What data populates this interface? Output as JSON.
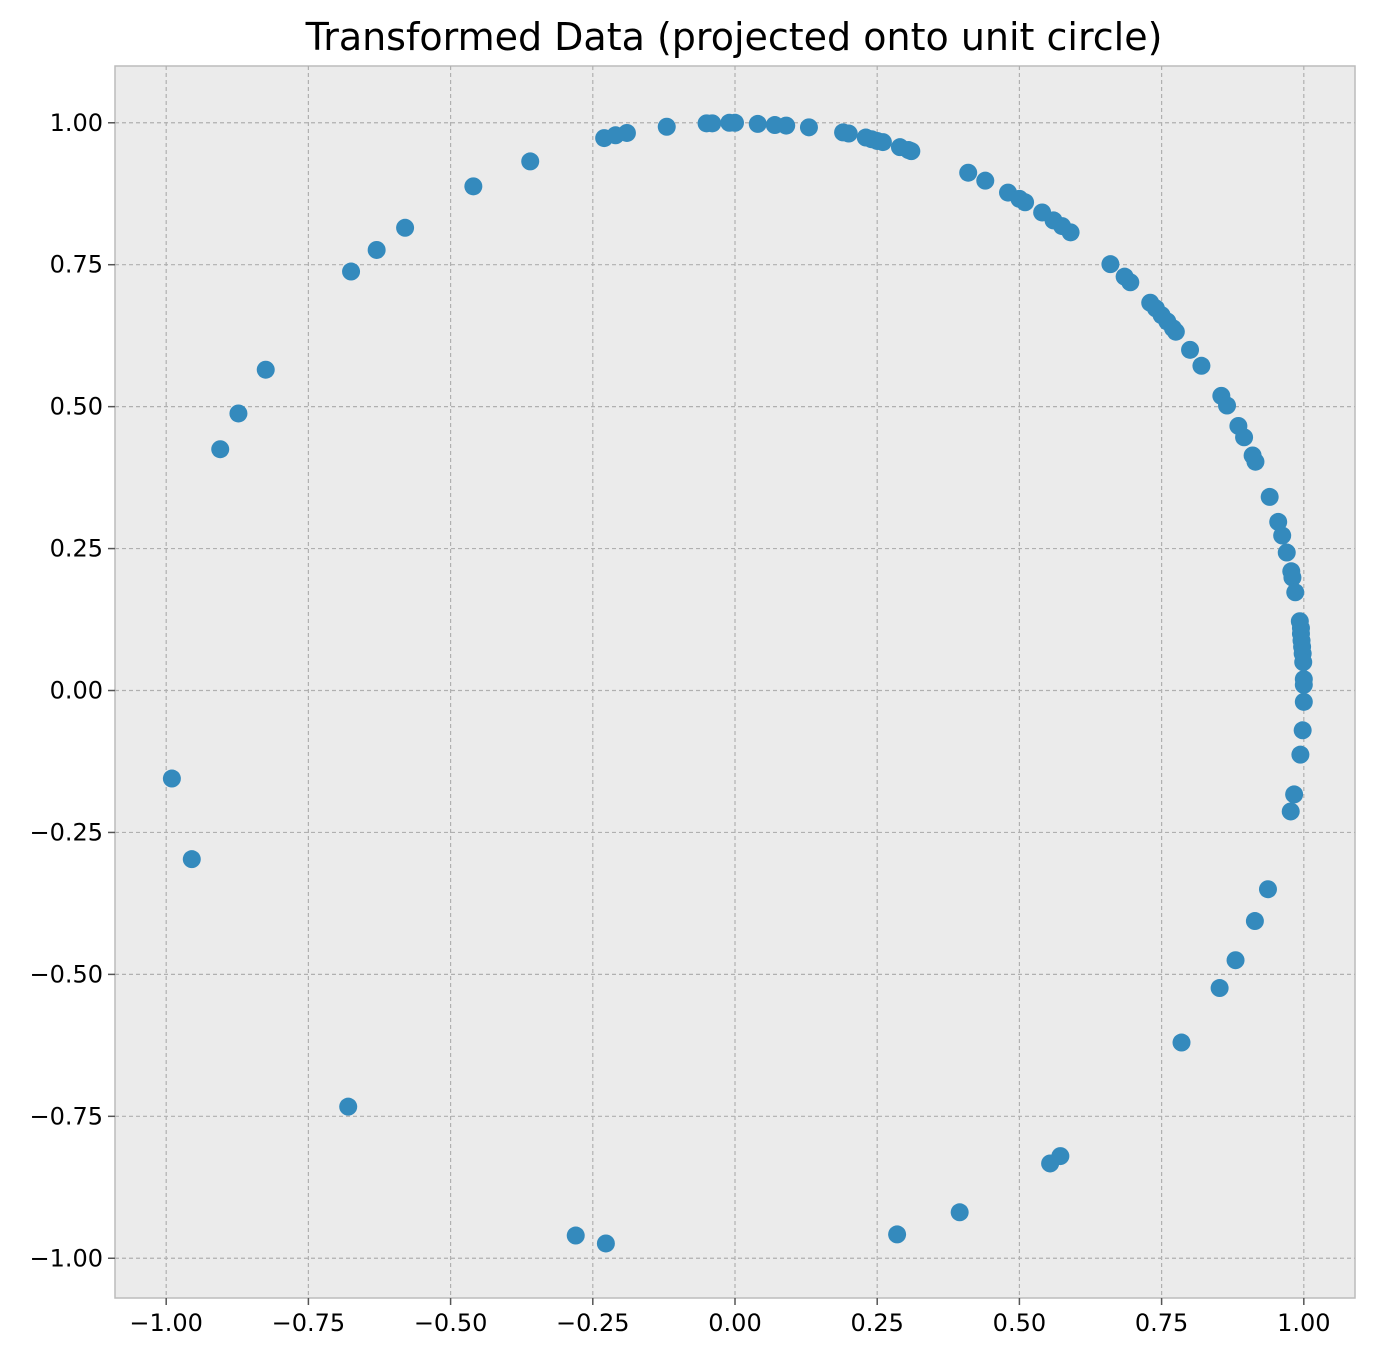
{
  "chart_data": {
    "type": "scatter",
    "title": "Transformed Data (projected onto unit circle)",
    "xlabel": "",
    "ylabel": "",
    "xlim": [
      -1.09,
      1.09
    ],
    "ylim": [
      -1.07,
      1.1
    ],
    "xticks": [
      -1.0,
      -0.75,
      -0.5,
      -0.25,
      0.0,
      0.25,
      0.5,
      0.75,
      1.0
    ],
    "xtick_labels": [
      "−1.00",
      "−0.75",
      "−0.50",
      "−0.25",
      "0.00",
      "0.25",
      "0.50",
      "0.75",
      "1.00"
    ],
    "yticks": [
      1.0,
      0.75,
      0.5,
      0.25,
      0.0,
      -0.25,
      -0.5,
      -0.75,
      -1.0
    ],
    "ytick_labels": [
      "1.00",
      "0.75",
      "0.50",
      "0.25",
      "0.00",
      "−0.25",
      "−0.50",
      "−0.75",
      "−1.00"
    ],
    "grid": true,
    "colors": {
      "marker": "#348ABD",
      "background": "#EBEBEB",
      "frame": "#BCBCBC",
      "grid": "#B0B0B0"
    },
    "series": [
      {
        "points": [
          [
            0.0,
            1.0
          ],
          [
            0.04,
            0.998
          ],
          [
            0.07,
            0.996
          ],
          [
            0.09,
            0.995
          ],
          [
            0.13,
            0.992
          ],
          [
            0.19,
            0.983
          ],
          [
            0.2,
            0.981
          ],
          [
            0.23,
            0.974
          ],
          [
            0.24,
            0.971
          ],
          [
            0.25,
            0.968
          ],
          [
            0.26,
            0.966
          ],
          [
            0.29,
            0.957
          ],
          [
            0.305,
            0.952
          ],
          [
            0.31,
            0.95
          ],
          [
            0.41,
            0.912
          ],
          [
            0.44,
            0.898
          ],
          [
            0.48,
            0.877
          ],
          [
            0.5,
            0.866
          ],
          [
            0.51,
            0.86
          ],
          [
            0.54,
            0.842
          ],
          [
            0.56,
            0.828
          ],
          [
            0.575,
            0.818
          ],
          [
            0.59,
            0.807
          ],
          [
            0.66,
            0.751
          ],
          [
            0.685,
            0.729
          ],
          [
            0.695,
            0.719
          ],
          [
            0.73,
            0.683
          ],
          [
            0.74,
            0.673
          ],
          [
            0.75,
            0.661
          ],
          [
            0.76,
            0.65
          ],
          [
            0.77,
            0.638
          ],
          [
            0.775,
            0.632
          ],
          [
            0.8,
            0.6
          ],
          [
            0.82,
            0.572
          ],
          [
            0.855,
            0.519
          ],
          [
            0.865,
            0.502
          ],
          [
            0.885,
            0.466
          ],
          [
            0.895,
            0.446
          ],
          [
            0.91,
            0.414
          ],
          [
            0.915,
            0.403
          ],
          [
            0.94,
            0.341
          ],
          [
            0.955,
            0.297
          ],
          [
            0.962,
            0.273
          ],
          [
            0.97,
            0.243
          ],
          [
            0.978,
            0.21
          ],
          [
            0.98,
            0.199
          ],
          [
            0.985,
            0.173
          ],
          [
            0.993,
            0.122
          ],
          [
            0.995,
            0.11
          ],
          [
            0.995,
            0.1
          ],
          [
            0.996,
            0.088
          ],
          [
            0.997,
            0.077
          ],
          [
            0.998,
            0.065
          ],
          [
            0.999,
            0.05
          ],
          [
            1.0,
            0.02
          ],
          [
            1.0,
            0.01
          ],
          [
            1.0,
            -0.02
          ],
          [
            0.998,
            -0.07
          ],
          [
            0.994,
            -0.113
          ],
          [
            0.983,
            -0.183
          ],
          [
            0.977,
            -0.213
          ],
          [
            0.937,
            -0.35
          ],
          [
            0.914,
            -0.406
          ],
          [
            0.88,
            -0.475
          ],
          [
            0.852,
            -0.524
          ],
          [
            0.785,
            -0.62
          ],
          [
            0.572,
            -0.82
          ],
          [
            0.554,
            -0.833
          ],
          [
            0.395,
            -0.919
          ],
          [
            0.285,
            -0.958
          ],
          [
            -0.01,
            1.0
          ],
          [
            -0.04,
            0.999
          ],
          [
            -0.05,
            0.999
          ],
          [
            -0.12,
            0.993
          ],
          [
            -0.19,
            0.982
          ],
          [
            -0.21,
            0.978
          ],
          [
            -0.23,
            0.973
          ],
          [
            -0.36,
            0.932
          ],
          [
            -0.46,
            0.888
          ],
          [
            -0.58,
            0.815
          ],
          [
            -0.63,
            0.776
          ],
          [
            -0.675,
            0.738
          ],
          [
            -0.825,
            0.565
          ],
          [
            -0.873,
            0.488
          ],
          [
            -0.905,
            0.425
          ],
          [
            -0.99,
            -0.155
          ],
          [
            -0.955,
            -0.297
          ],
          [
            -0.68,
            -0.733
          ],
          [
            -0.28,
            -0.96
          ],
          [
            -0.227,
            -0.974
          ]
        ]
      }
    ]
  }
}
